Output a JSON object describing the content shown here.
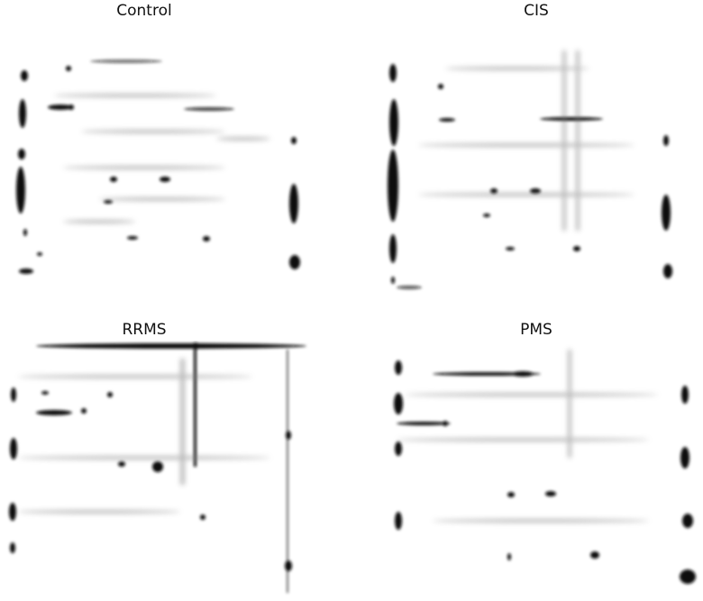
{
  "figure": {
    "panels": [
      {
        "id": "control",
        "title": "Control"
      },
      {
        "id": "cis",
        "title": "CIS"
      },
      {
        "id": "rrms",
        "title": "RRMS"
      },
      {
        "id": "pms",
        "title": "PMS"
      }
    ]
  }
}
